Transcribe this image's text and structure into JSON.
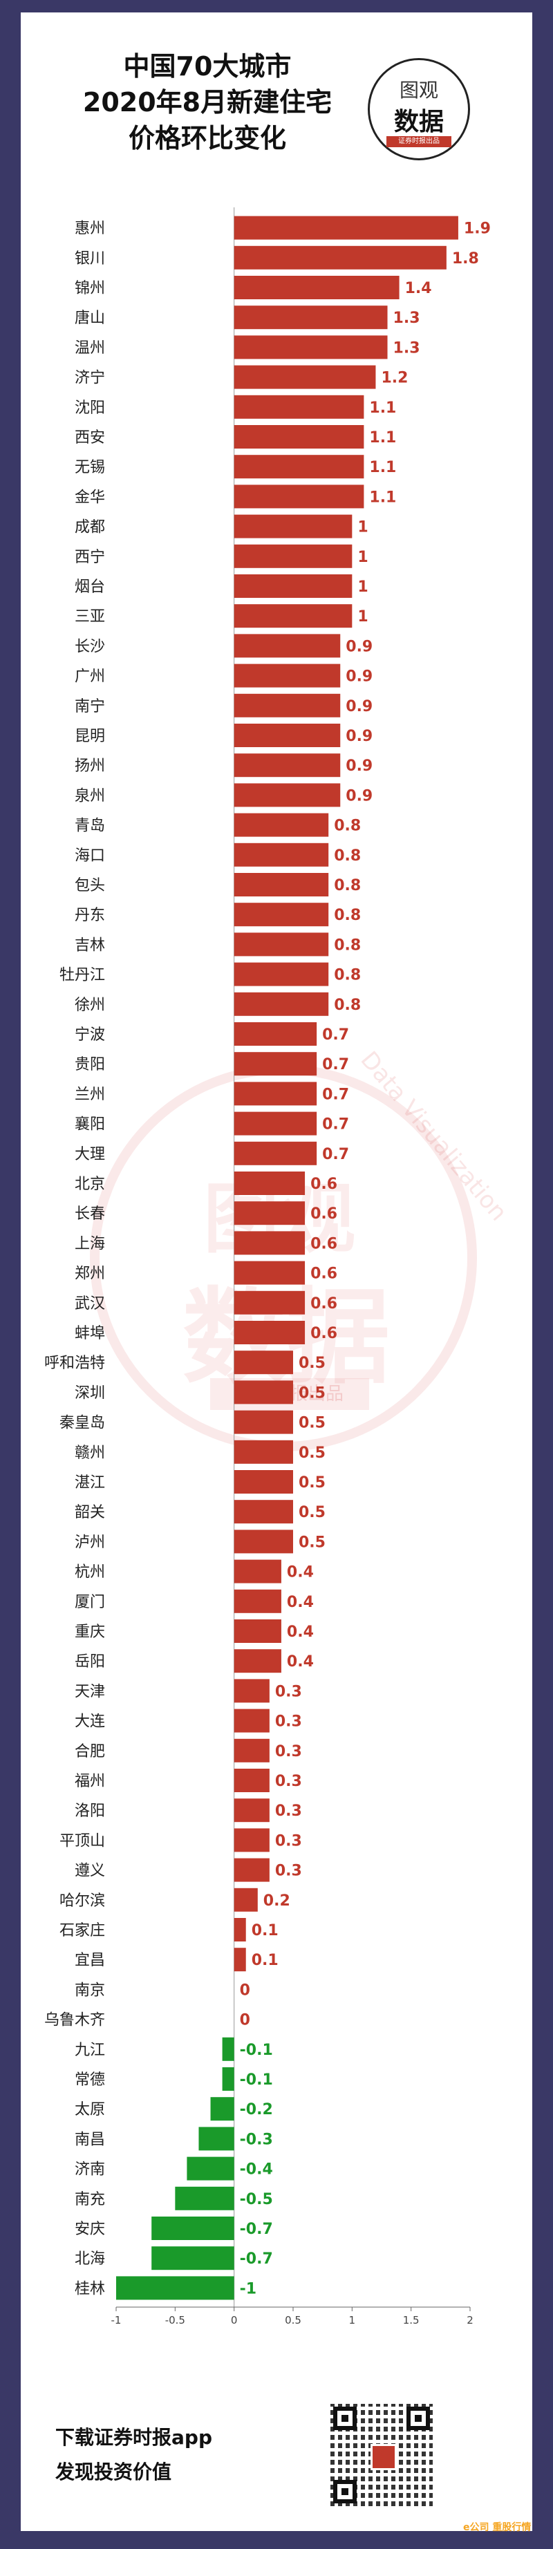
{
  "header": {
    "title_line1": "中国70大城市",
    "title_line2": "2020年8月新建住宅",
    "title_line3": "价格环比变化"
  },
  "logo": {
    "line1": "图观",
    "line2": "数据",
    "tag": "证券时报出品",
    "arc_text": "Data Visualization"
  },
  "watermark": {
    "line1": "图观",
    "line2": "数据",
    "arc_text": "Data Visualization",
    "tag": "证券时报出品"
  },
  "footer": {
    "line1": "下载证券时报app",
    "line2": "发现投资价值",
    "brand": "e公司 重股行情"
  },
  "colors": {
    "positive": "#c0392b",
    "negative": "#1a9a2a",
    "frame": "#3a3866"
  },
  "chart_data": {
    "type": "bar",
    "orientation": "horizontal",
    "categories": [
      "惠州",
      "银川",
      "锦州",
      "唐山",
      "温州",
      "济宁",
      "沈阳",
      "西安",
      "无锡",
      "金华",
      "成都",
      "西宁",
      "烟台",
      "三亚",
      "长沙",
      "广州",
      "南宁",
      "昆明",
      "扬州",
      "泉州",
      "青岛",
      "海口",
      "包头",
      "丹东",
      "吉林",
      "牡丹江",
      "徐州",
      "宁波",
      "贵阳",
      "兰州",
      "襄阳",
      "大理",
      "北京",
      "长春",
      "上海",
      "郑州",
      "武汉",
      "蚌埠",
      "呼和浩特",
      "深圳",
      "秦皇岛",
      "赣州",
      "湛江",
      "韶关",
      "泸州",
      "杭州",
      "厦门",
      "重庆",
      "岳阳",
      "天津",
      "大连",
      "合肥",
      "福州",
      "洛阳",
      "平顶山",
      "遵义",
      "哈尔滨",
      "石家庄",
      "宜昌",
      "南京",
      "乌鲁木齐",
      "九江",
      "常德",
      "太原",
      "南昌",
      "济南",
      "南充",
      "安庆",
      "北海",
      "桂林"
    ],
    "values": [
      1.9,
      1.8,
      1.4,
      1.3,
      1.3,
      1.2,
      1.1,
      1.1,
      1.1,
      1.1,
      1,
      1,
      1,
      1,
      0.9,
      0.9,
      0.9,
      0.9,
      0.9,
      0.9,
      0.8,
      0.8,
      0.8,
      0.8,
      0.8,
      0.8,
      0.8,
      0.7,
      0.7,
      0.7,
      0.7,
      0.7,
      0.6,
      0.6,
      0.6,
      0.6,
      0.6,
      0.6,
      0.5,
      0.5,
      0.5,
      0.5,
      0.5,
      0.5,
      0.5,
      0.4,
      0.4,
      0.4,
      0.4,
      0.3,
      0.3,
      0.3,
      0.3,
      0.3,
      0.3,
      0.3,
      0.2,
      0.1,
      0.1,
      0,
      0,
      -0.1,
      -0.1,
      -0.2,
      -0.3,
      -0.4,
      -0.5,
      -0.7,
      -0.7,
      -1
    ],
    "value_labels": [
      "1.9",
      "1.8",
      "1.4",
      "1.3",
      "1.3",
      "1.2",
      "1.1",
      "1.1",
      "1.1",
      "1.1",
      "1",
      "1",
      "1",
      "1",
      "0.9",
      "0.9",
      "0.9",
      "0.9",
      "0.9",
      "0.9",
      "0.8",
      "0.8",
      "0.8",
      "0.8",
      "0.8",
      "0.8",
      "0.8",
      "0.7",
      "0.7",
      "0.7",
      "0.7",
      "0.7",
      "0.6",
      "0.6",
      "0.6",
      "0.6",
      "0.6",
      "0.6",
      "0.5",
      "0.5",
      "0.5",
      "0.5",
      "0.5",
      "0.5",
      "0.5",
      "0.4",
      "0.4",
      "0.4",
      "0.4",
      "0.3",
      "0.3",
      "0.3",
      "0.3",
      "0.3",
      "0.3",
      "0.3",
      "0.2",
      "0.1",
      "0.1",
      "0",
      "0",
      "-0.1",
      "-0.1",
      "-0.2",
      "-0.3",
      "-0.4",
      "-0.5",
      "-0.7",
      "-0.7",
      "-1"
    ],
    "xlim": [
      -1,
      2
    ],
    "xticks": [
      -1,
      -0.5,
      0,
      0.5,
      1,
      1.5,
      2
    ],
    "xtick_labels": [
      "-1",
      "-0.5",
      "0",
      "0.5",
      "1",
      "1.5",
      "2"
    ],
    "title": "",
    "xlabel": "",
    "ylabel": "",
    "grid": false,
    "legend": "none"
  }
}
